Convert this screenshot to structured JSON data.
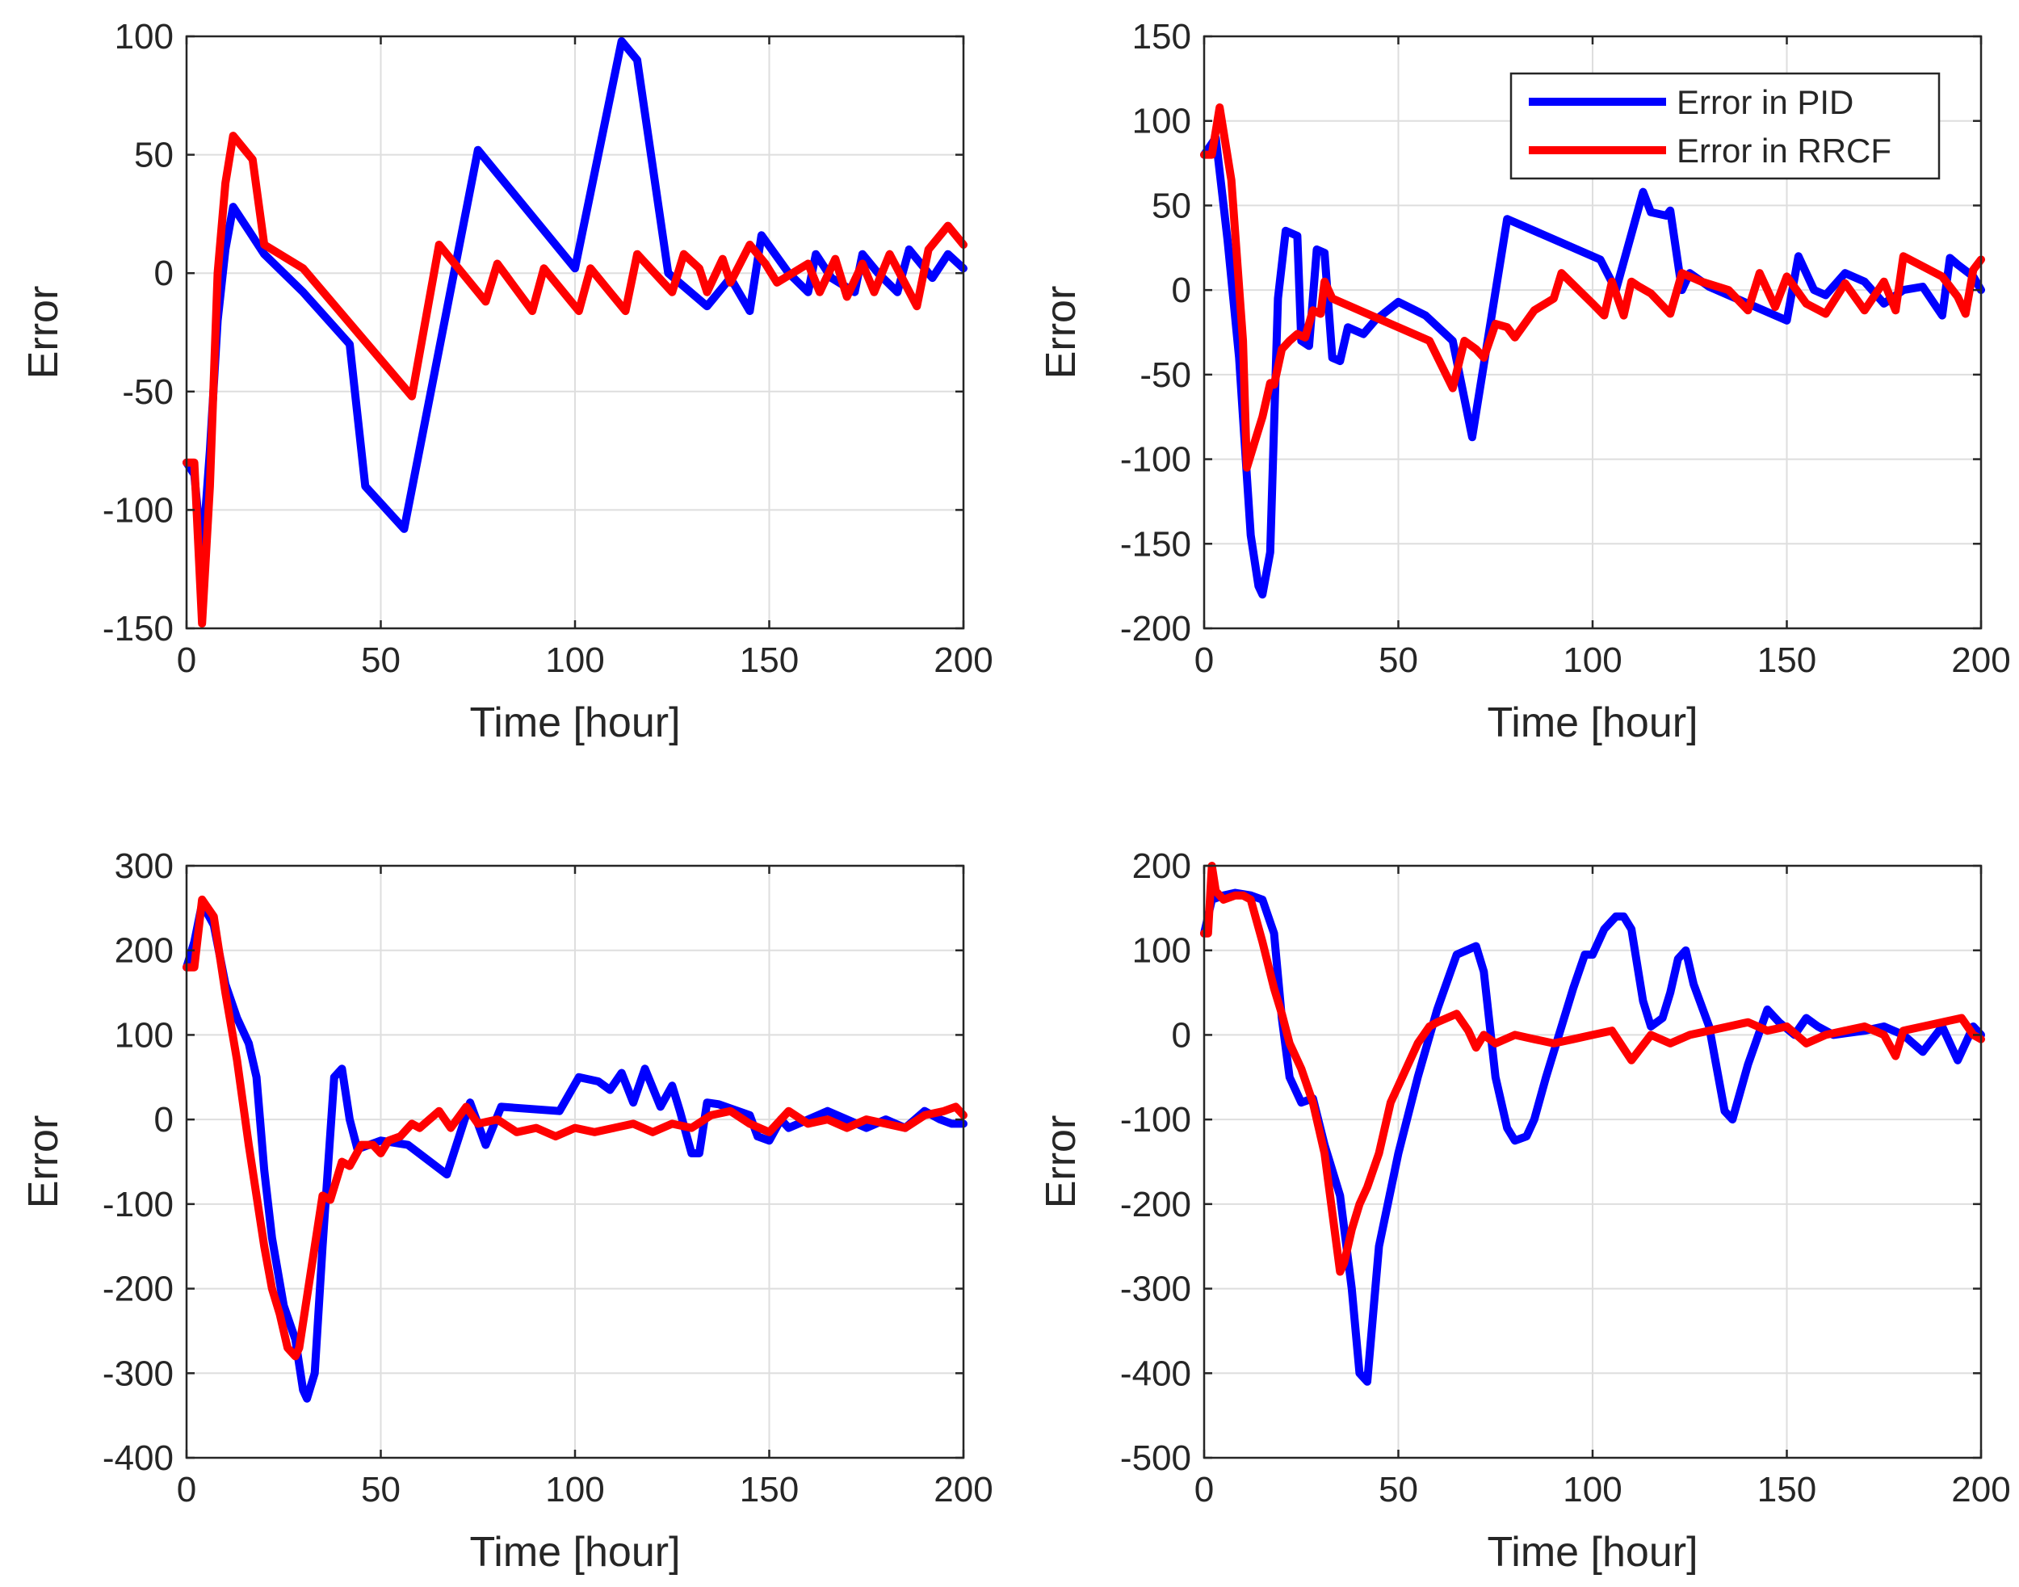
{
  "figure": {
    "legend": {
      "panel": 1,
      "position": "top-right",
      "entries": [
        {
          "name": "Error in PID",
          "color": "#0000ff"
        },
        {
          "name": "Error in RRCF",
          "color": "#ff0000"
        }
      ]
    }
  },
  "chart_data": [
    {
      "type": "line",
      "position": "top-left",
      "xlabel": "Time [hour]",
      "ylabel": "Error",
      "xlim": [
        0,
        200
      ],
      "ylim": [
        -150,
        100
      ],
      "xticks": [
        0,
        50,
        100,
        150,
        200
      ],
      "yticks": [
        -150,
        -100,
        -50,
        0,
        50,
        100
      ],
      "grid": true,
      "series": [
        {
          "name": "Error in PID",
          "color": "#0000ff",
          "x": [
            0,
            2,
            4,
            6,
            8,
            10,
            12,
            16,
            20,
            30,
            42,
            46,
            56,
            75,
            100,
            112,
            116,
            124,
            134,
            140,
            145,
            148,
            155,
            160,
            162,
            166,
            172,
            174,
            178,
            183,
            186,
            192,
            196,
            200
          ],
          "y": [
            -80,
            -85,
            -120,
            -75,
            -20,
            10,
            28,
            18,
            8,
            -8,
            -30,
            -90,
            -108,
            52,
            2,
            98,
            90,
            0,
            -14,
            -2,
            -16,
            16,
            0,
            -8,
            8,
            -2,
            -8,
            8,
            0,
            -8,
            10,
            -2,
            8,
            2
          ]
        },
        {
          "name": "Error in RRCF",
          "color": "#ff0000",
          "x": [
            0,
            2,
            4,
            6,
            8,
            10,
            12,
            17,
            20,
            30,
            58,
            65,
            77,
            80,
            89,
            92,
            101,
            104,
            113,
            116,
            125,
            128,
            132,
            134,
            138,
            140,
            145,
            149,
            152,
            160,
            163,
            167,
            170,
            174,
            177,
            181,
            188,
            191,
            196,
            200
          ],
          "y": [
            -80,
            -80,
            -148,
            -90,
            0,
            38,
            58,
            48,
            12,
            2,
            -52,
            12,
            -12,
            4,
            -16,
            2,
            -16,
            2,
            -16,
            8,
            -8,
            8,
            2,
            -8,
            6,
            -4,
            12,
            4,
            -4,
            4,
            -8,
            6,
            -10,
            4,
            -8,
            8,
            -14,
            10,
            20,
            12
          ]
        }
      ]
    },
    {
      "type": "line",
      "position": "top-right",
      "xlabel": "Time [hour]",
      "ylabel": "Error",
      "xlim": [
        0,
        200
      ],
      "ylim": [
        -200,
        150
      ],
      "xticks": [
        0,
        50,
        100,
        150,
        200
      ],
      "yticks": [
        -200,
        -150,
        -100,
        -50,
        0,
        50,
        100,
        150
      ],
      "grid": true,
      "series": [
        {
          "name": "Error in PID",
          "color": "#0000ff",
          "x": [
            0,
            3,
            6,
            9,
            12,
            14,
            15,
            17,
            19,
            21,
            24,
            25,
            27,
            29,
            31,
            33,
            35,
            37,
            39,
            41,
            44,
            50,
            57,
            64,
            69,
            78,
            102,
            106,
            113,
            115,
            119,
            120,
            123,
            125,
            130,
            150,
            153,
            157,
            160,
            165,
            170,
            175,
            180,
            185,
            190,
            192,
            194,
            198,
            200
          ],
          "y": [
            80,
            90,
            30,
            -40,
            -145,
            -175,
            -180,
            -155,
            -5,
            35,
            32,
            -30,
            -33,
            24,
            22,
            -40,
            -42,
            -22,
            -24,
            -26,
            -18,
            -7,
            -15,
            -30,
            -87,
            42,
            18,
            0,
            58,
            46,
            44,
            47,
            0,
            10,
            2,
            -18,
            20,
            0,
            -3,
            10,
            5,
            -8,
            0,
            2,
            -15,
            19,
            15,
            8,
            0
          ]
        },
        {
          "name": "Error in RRCF",
          "color": "#ff0000",
          "x": [
            0,
            2,
            4,
            7,
            10,
            11,
            13,
            15,
            17,
            18,
            20,
            22,
            24,
            26,
            28,
            30,
            31,
            33,
            58,
            64,
            67,
            70,
            72,
            75,
            78,
            80,
            85,
            90,
            92,
            100,
            103,
            105,
            108,
            110,
            112,
            115,
            120,
            123,
            128,
            135,
            140,
            143,
            147,
            150,
            155,
            160,
            165,
            170,
            175,
            178,
            180,
            185,
            190,
            194,
            196,
            198,
            200
          ],
          "y": [
            80,
            80,
            108,
            65,
            -30,
            -105,
            -90,
            -75,
            -55,
            -56,
            -35,
            -30,
            -26,
            -28,
            -12,
            -14,
            5,
            -5,
            -30,
            -58,
            -30,
            -35,
            -40,
            -20,
            -22,
            -28,
            -12,
            -5,
            10,
            -8,
            -15,
            5,
            -15,
            5,
            2,
            -2,
            -14,
            10,
            5,
            0,
            -12,
            10,
            -10,
            8,
            -8,
            -14,
            4,
            -12,
            5,
            -12,
            20,
            14,
            8,
            -4,
            -14,
            12,
            18
          ]
        }
      ]
    },
    {
      "type": "line",
      "position": "bottom-left",
      "xlabel": "Time [hour]",
      "ylabel": "Error",
      "xlim": [
        0,
        200
      ],
      "ylim": [
        -400,
        300
      ],
      "xticks": [
        0,
        50,
        100,
        150,
        200
      ],
      "yticks": [
        -400,
        -300,
        -200,
        -100,
        0,
        100,
        200,
        300
      ],
      "grid": true,
      "series": [
        {
          "name": "Error in PID",
          "color": "#0000ff",
          "x": [
            0,
            2,
            4,
            7,
            10,
            13,
            16,
            18,
            20,
            22,
            25,
            28,
            30,
            31,
            33,
            35,
            38,
            40,
            42,
            44,
            47,
            50,
            57,
            67,
            73,
            77,
            81,
            96,
            101,
            106,
            109,
            112,
            115,
            118,
            122,
            125,
            127,
            130,
            132,
            134,
            137,
            145,
            147,
            150,
            153,
            155,
            165,
            170,
            175,
            180,
            185,
            190,
            194,
            197,
            200
          ],
          "y": [
            180,
            210,
            255,
            230,
            160,
            120,
            90,
            50,
            -60,
            -140,
            -220,
            -260,
            -320,
            -330,
            -300,
            -150,
            50,
            60,
            0,
            -35,
            -30,
            -25,
            -30,
            -65,
            20,
            -30,
            15,
            10,
            50,
            45,
            35,
            55,
            20,
            60,
            15,
            40,
            10,
            -40,
            -40,
            20,
            18,
            5,
            -20,
            -25,
            0,
            -10,
            10,
            0,
            -10,
            0,
            -10,
            10,
            0,
            -5,
            -5
          ]
        },
        {
          "name": "Error in RRCF",
          "color": "#ff0000",
          "x": [
            0,
            2,
            4,
            7,
            10,
            13,
            16,
            18,
            20,
            22,
            24,
            26,
            28,
            29,
            32,
            35,
            37,
            40,
            42,
            45,
            48,
            50,
            52,
            55,
            58,
            60,
            65,
            68,
            72,
            75,
            80,
            85,
            90,
            95,
            100,
            105,
            110,
            115,
            120,
            125,
            130,
            135,
            140,
            145,
            150,
            155,
            160,
            165,
            170,
            175,
            180,
            185,
            190,
            195,
            198,
            200
          ],
          "y": [
            180,
            180,
            260,
            240,
            150,
            70,
            -30,
            -90,
            -150,
            -200,
            -230,
            -270,
            -280,
            -270,
            -180,
            -90,
            -95,
            -50,
            -55,
            -30,
            -30,
            -40,
            -25,
            -20,
            -5,
            -10,
            10,
            -10,
            15,
            -5,
            0,
            -15,
            -10,
            -20,
            -10,
            -15,
            -10,
            -5,
            -15,
            -5,
            -10,
            5,
            10,
            -5,
            -15,
            10,
            -5,
            0,
            -10,
            0,
            -5,
            -10,
            5,
            10,
            15,
            5
          ]
        }
      ]
    },
    {
      "type": "line",
      "position": "bottom-right",
      "xlabel": "Time [hour]",
      "ylabel": "Error",
      "xlim": [
        0,
        200
      ],
      "ylim": [
        -500,
        200
      ],
      "xticks": [
        0,
        50,
        100,
        150,
        200
      ],
      "yticks": [
        -500,
        -400,
        -300,
        -200,
        -100,
        0,
        100,
        200
      ],
      "grid": true,
      "series": [
        {
          "name": "Error in PID",
          "color": "#0000ff",
          "x": [
            0,
            2,
            5,
            8,
            12,
            15,
            18,
            20,
            22,
            25,
            28,
            31,
            35,
            38,
            40,
            42,
            45,
            50,
            55,
            60,
            65,
            70,
            72,
            75,
            78,
            80,
            83,
            85,
            88,
            90,
            95,
            98,
            100,
            103,
            106,
            108,
            110,
            113,
            115,
            118,
            120,
            122,
            124,
            126,
            130,
            134,
            136,
            140,
            145,
            148,
            152,
            155,
            158,
            162,
            170,
            175,
            180,
            185,
            190,
            194,
            198,
            200
          ],
          "y": [
            120,
            160,
            165,
            168,
            165,
            160,
            120,
            20,
            -50,
            -80,
            -75,
            -130,
            -190,
            -300,
            -400,
            -410,
            -250,
            -140,
            -50,
            30,
            95,
            105,
            75,
            -50,
            -110,
            -125,
            -120,
            -100,
            -50,
            -20,
            55,
            95,
            95,
            125,
            140,
            140,
            125,
            40,
            10,
            20,
            50,
            90,
            100,
            60,
            10,
            -90,
            -100,
            -35,
            30,
            15,
            0,
            20,
            10,
            0,
            5,
            10,
            0,
            -20,
            10,
            -30,
            10,
            0
          ]
        },
        {
          "name": "Error in RRCF",
          "color": "#ff0000",
          "x": [
            0,
            1,
            2,
            3,
            5,
            8,
            10,
            12,
            15,
            18,
            20,
            22,
            25,
            28,
            31,
            35,
            36,
            38,
            40,
            42,
            45,
            48,
            50,
            53,
            55,
            58,
            60,
            65,
            68,
            70,
            72,
            75,
            80,
            85,
            90,
            95,
            100,
            105,
            110,
            115,
            120,
            125,
            130,
            135,
            140,
            145,
            150,
            155,
            160,
            165,
            170,
            175,
            178,
            180,
            185,
            190,
            195,
            198,
            200
          ],
          "y": [
            120,
            120,
            200,
            170,
            160,
            165,
            165,
            160,
            110,
            55,
            25,
            -10,
            -40,
            -80,
            -140,
            -280,
            -270,
            -230,
            -200,
            -180,
            -140,
            -80,
            -60,
            -30,
            -10,
            10,
            15,
            25,
            5,
            -15,
            0,
            -10,
            0,
            -5,
            -10,
            -5,
            0,
            5,
            -30,
            0,
            -10,
            0,
            5,
            10,
            15,
            5,
            10,
            -10,
            0,
            5,
            10,
            0,
            -25,
            5,
            10,
            15,
            20,
            0,
            -5
          ]
        }
      ]
    }
  ]
}
